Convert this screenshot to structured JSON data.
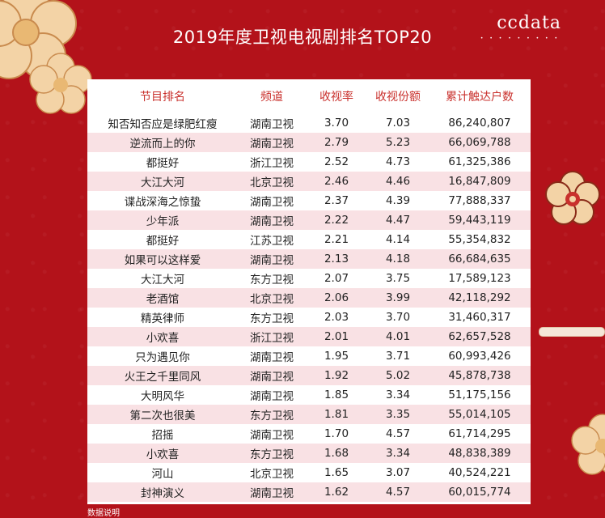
{
  "title": "2019年度卫视电视剧排名TOP20",
  "brand": "ccdata",
  "brand_dots": "• • • • • • • • •",
  "table": {
    "headers": [
      "节目排名",
      "频道",
      "收视率",
      "收视份额",
      "累计触达户数"
    ],
    "rows": [
      [
        "知否知否应是绿肥红瘦",
        "湖南卫视",
        "3.70",
        "7.03",
        "86,240,807"
      ],
      [
        "逆流而上的你",
        "湖南卫视",
        "2.79",
        "5.23",
        "66,069,788"
      ],
      [
        "都挺好",
        "浙江卫视",
        "2.52",
        "4.73",
        "61,325,386"
      ],
      [
        "大江大河",
        "北京卫视",
        "2.46",
        "4.46",
        "16,847,809"
      ],
      [
        "谍战深海之惊蛰",
        "湖南卫视",
        "2.37",
        "4.39",
        "77,888,337"
      ],
      [
        "少年派",
        "湖南卫视",
        "2.22",
        "4.47",
        "59,443,119"
      ],
      [
        "都挺好",
        "江苏卫视",
        "2.21",
        "4.14",
        "55,354,832"
      ],
      [
        "如果可以这样爱",
        "湖南卫视",
        "2.13",
        "4.18",
        "66,684,635"
      ],
      [
        "大江大河",
        "东方卫视",
        "2.07",
        "3.75",
        "17,589,123"
      ],
      [
        "老酒馆",
        "北京卫视",
        "2.06",
        "3.99",
        "42,118,292"
      ],
      [
        "精英律师",
        "东方卫视",
        "2.03",
        "3.70",
        "31,460,317"
      ],
      [
        "小欢喜",
        "浙江卫视",
        "2.01",
        "4.01",
        "62,657,528"
      ],
      [
        "只为遇见你",
        "湖南卫视",
        "1.95",
        "3.71",
        "60,993,426"
      ],
      [
        "火王之千里同风",
        "湖南卫视",
        "1.92",
        "5.02",
        "45,878,738"
      ],
      [
        "大明风华",
        "湖南卫视",
        "1.85",
        "3.34",
        "51,175,156"
      ],
      [
        "第二次也很美",
        "东方卫视",
        "1.81",
        "3.35",
        "55,014,105"
      ],
      [
        "招摇",
        "湖南卫视",
        "1.70",
        "4.57",
        "61,714,295"
      ],
      [
        "小欢喜",
        "东方卫视",
        "1.68",
        "3.34",
        "48,838,389"
      ],
      [
        "河山",
        "北京卫视",
        "1.65",
        "3.07",
        "40,524,221"
      ],
      [
        "封神演义",
        "湖南卫视",
        "1.62",
        "4.57",
        "60,015,774"
      ]
    ]
  },
  "footnote": "数据说明",
  "colors": {
    "background": "#b3121a",
    "header_text": "#c9302c",
    "row_stripe": "#f9e1e4",
    "flower": "#f3d3a6"
  }
}
